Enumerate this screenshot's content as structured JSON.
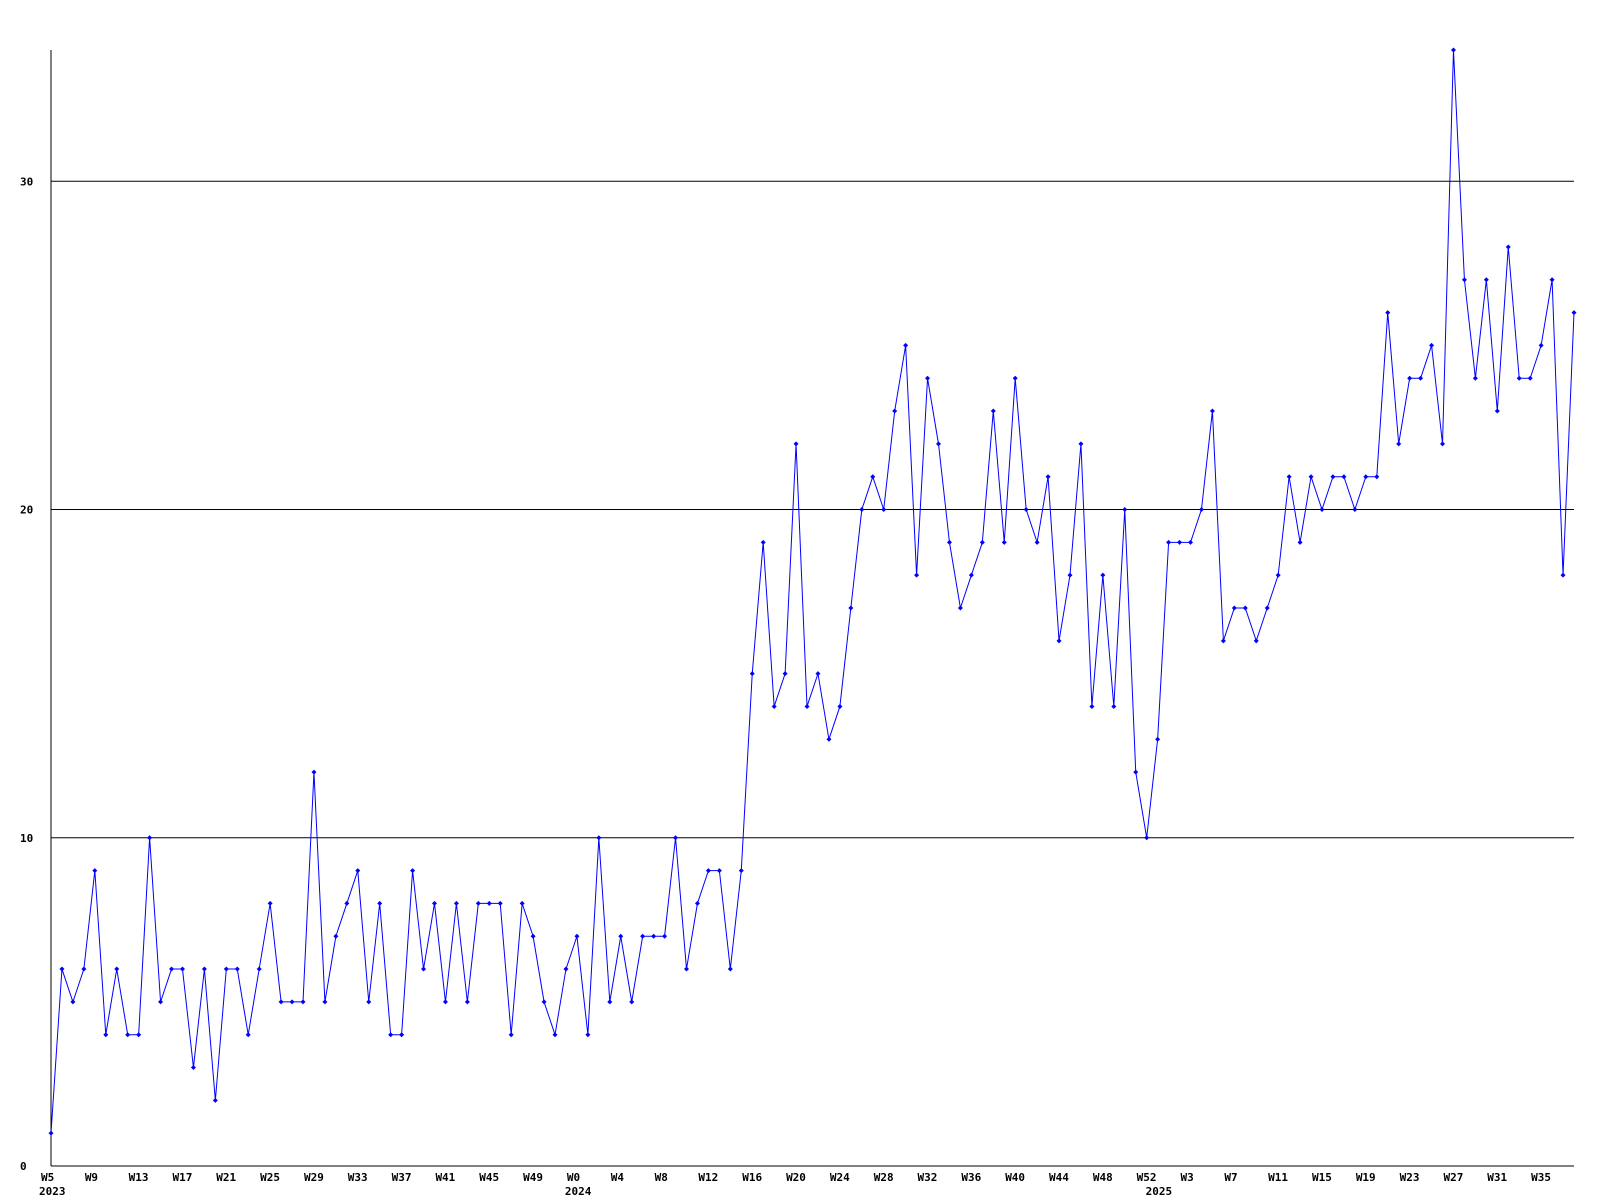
{
  "chart_data": {
    "type": "line",
    "categories": [
      "W5",
      null,
      null,
      null,
      "W9",
      null,
      null,
      null,
      "W13",
      null,
      null,
      null,
      "W17",
      null,
      null,
      null,
      "W21",
      null,
      null,
      null,
      "W25",
      null,
      null,
      null,
      "W29",
      null,
      null,
      null,
      "W33",
      null,
      null,
      null,
      "W37",
      null,
      null,
      null,
      "W41",
      null,
      null,
      null,
      "W45",
      null,
      null,
      null,
      "W49",
      null,
      null,
      null,
      "W0",
      null,
      null,
      null,
      "W4",
      null,
      null,
      null,
      "W8",
      null,
      null,
      null,
      "W12",
      null,
      null,
      null,
      "W16",
      null,
      null,
      null,
      "W20",
      null,
      null,
      null,
      "W24",
      null,
      null,
      null,
      "W28",
      null,
      null,
      null,
      "W32",
      null,
      null,
      null,
      "W36",
      null,
      null,
      null,
      "W40",
      null,
      null,
      null,
      "W44",
      null,
      null,
      null,
      "W48",
      null,
      null,
      null,
      "W52",
      null,
      null,
      null,
      "W3",
      null,
      null,
      null,
      "W7",
      null,
      null,
      null,
      "W11",
      null,
      null,
      null,
      "W15",
      null,
      null,
      null,
      "W19",
      null,
      null,
      null,
      "W23",
      null,
      null,
      null,
      "W27",
      null,
      null,
      null,
      "W31",
      null,
      null,
      null,
      "W35",
      null,
      null,
      null
    ],
    "years": [
      "2023",
      null,
      null,
      null,
      null,
      null,
      null,
      null,
      null,
      null,
      null,
      null,
      null,
      null,
      null,
      null,
      null,
      null,
      null,
      null,
      null,
      null,
      null,
      null,
      null,
      null,
      null,
      null,
      null,
      null,
      null,
      null,
      null,
      null,
      null,
      null,
      null,
      null,
      null,
      null,
      null,
      null,
      null,
      null,
      null,
      null,
      null,
      null,
      "2024",
      null,
      null,
      null,
      null,
      null,
      null,
      null,
      null,
      null,
      null,
      null,
      null,
      null,
      null,
      null,
      null,
      null,
      null,
      null,
      null,
      null,
      null,
      null,
      null,
      null,
      null,
      null,
      null,
      null,
      null,
      null,
      null,
      null,
      null,
      null,
      null,
      null,
      null,
      null,
      null,
      null,
      null,
      null,
      null,
      null,
      null,
      null,
      null,
      null,
      null,
      null,
      null,
      "2025",
      null,
      null,
      null,
      null,
      null,
      null,
      null,
      null,
      null,
      null,
      null,
      null,
      null,
      null,
      null,
      null,
      null,
      null,
      null,
      null,
      null,
      null,
      null,
      null,
      null,
      null,
      null,
      null,
      null,
      null,
      null,
      null,
      null,
      null,
      null,
      null,
      null,
      null
    ],
    "series": [
      {
        "color": "#0000ff",
        "values": [
          1,
          6,
          5,
          6,
          9,
          4,
          6,
          4,
          4,
          10,
          5,
          6,
          6,
          3,
          6,
          2,
          6,
          6,
          4,
          6,
          8,
          5,
          5,
          5,
          12,
          5,
          7,
          8,
          9,
          5,
          8,
          4,
          4,
          9,
          6,
          8,
          5,
          8,
          5,
          8,
          8,
          8,
          4,
          8,
          7,
          5,
          4,
          6,
          7,
          4,
          10,
          5,
          7,
          5,
          7,
          7,
          7,
          10,
          6,
          8,
          9,
          9,
          6,
          9,
          15,
          19,
          14,
          15,
          22,
          14,
          15,
          13,
          14,
          17,
          20,
          21,
          20,
          23,
          25,
          18,
          24,
          22,
          19,
          17,
          18,
          19,
          23,
          19,
          24,
          20,
          19,
          21,
          16,
          18,
          22,
          14,
          18,
          14,
          20,
          12,
          10,
          13,
          19,
          19,
          19,
          20,
          23,
          16,
          17,
          17,
          16,
          17,
          18,
          21,
          19,
          21,
          20,
          21,
          21,
          20,
          21,
          21,
          26,
          22,
          24,
          24,
          25,
          22,
          34,
          27,
          24,
          27,
          23,
          28,
          24,
          24,
          25,
          27,
          18,
          26
        ]
      }
    ],
    "ylim": [
      0,
      34
    ],
    "yticks": [
      0,
      10,
      20,
      30
    ],
    "grid": true
  }
}
